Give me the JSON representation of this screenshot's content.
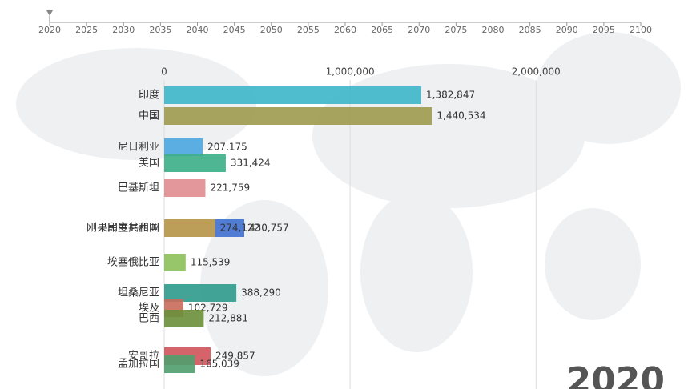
{
  "chart_data": {
    "type": "bar",
    "orientation": "horizontal",
    "timeline": {
      "xlim": [
        2020,
        2100
      ],
      "xticks": [
        2020,
        2025,
        2030,
        2035,
        2040,
        2045,
        2050,
        2055,
        2060,
        2065,
        2070,
        2075,
        2080,
        2085,
        2090,
        2095,
        2100
      ],
      "current": 2020
    },
    "xlim": [
      0,
      2800000
    ],
    "xticks": [
      0,
      {
        "value": 1000000,
        "label": "1,000,000"
      },
      {
        "value": 2000000,
        "label": "2,000,000"
      }
    ],
    "grid": true,
    "categories": [
      "印度",
      "中国",
      "尼日利亚",
      "美国",
      "巴基斯坦",
      "刚果民主共和国",
      "印度尼西亚",
      "埃塞俄比亚",
      "坦桑尼亚",
      "埃及",
      "巴西",
      "安哥拉",
      "孟加拉国"
    ],
    "values": [
      1382847,
      1440534,
      207175,
      331424,
      221759,
      430757,
      274122,
      115539,
      388290,
      102729,
      212881,
      249857,
      165039
    ],
    "value_labels": [
      "1,382,847",
      "1,440,534",
      "207,175",
      "331,424",
      "221,759",
      "430,757",
      "274,122",
      "115,539",
      "388,290",
      "102,729",
      "212,881",
      "249,857",
      "165,039"
    ],
    "colors": [
      "#3cb6c9",
      "#9c9a4c",
      "#4aa6e0",
      "#3cae88",
      "#e08c8f",
      "#3e6fd0",
      "#c9a24a",
      "#8bbf5a",
      "#2e9a8c",
      "#c96a5a",
      "#6a8f3a",
      "#d0525a",
      "#4f9e6e"
    ],
    "year": 2020
  }
}
